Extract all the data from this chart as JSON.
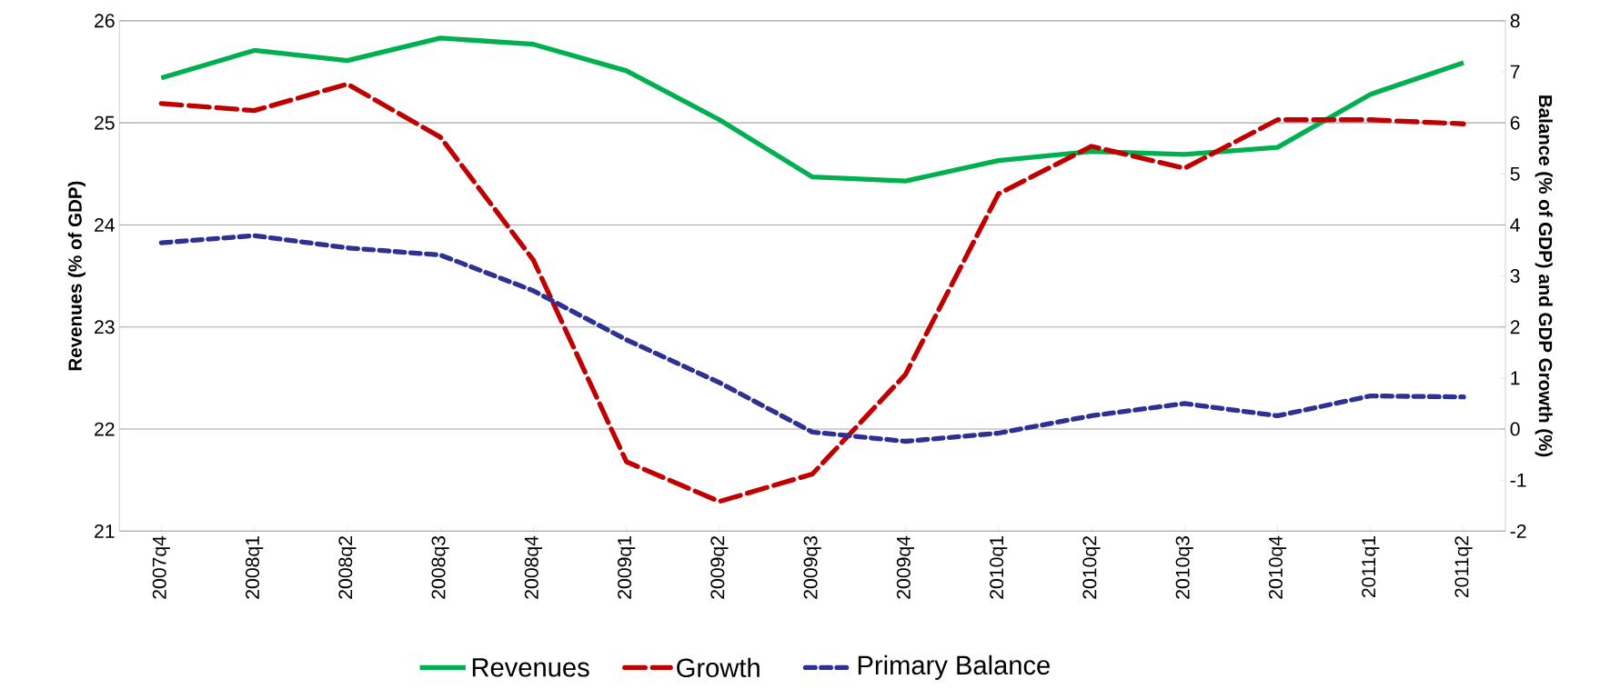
{
  "chart_data": {
    "type": "line",
    "categories": [
      "2007q4",
      "2008q1",
      "2008q2",
      "2008q3",
      "2008q4",
      "2009q1",
      "2009q2",
      "2009q3",
      "2009q4",
      "2010q1",
      "2010q2",
      "2010q3",
      "2010q4",
      "2011q1",
      "2011q2"
    ],
    "series": [
      {
        "name": "Revenues",
        "color": "#00b050",
        "line_style": "solid",
        "values": [
          25.44,
          25.71,
          25.61,
          25.83,
          25.77,
          25.51,
          25.03,
          24.47,
          24.43,
          24.63,
          24.72,
          24.69,
          24.76,
          25.28,
          25.59
        ]
      },
      {
        "name": "Growth",
        "color": "#c00000",
        "line_style": "dashed",
        "axis": "y2",
        "values": [
          6.38,
          6.24,
          6.76,
          5.72,
          3.31,
          -0.64,
          -1.42,
          -0.88,
          1.07,
          4.61,
          5.54,
          5.11,
          6.06,
          6.06,
          5.98
        ]
      },
      {
        "name": "Primary Balance",
        "color": "#2e3192",
        "line_style": "dashed",
        "axis": "y2",
        "values": [
          3.65,
          3.79,
          3.55,
          3.41,
          2.71,
          1.75,
          0.91,
          -0.06,
          -0.24,
          -0.08,
          0.26,
          0.5,
          0.26,
          0.65,
          0.63
        ]
      }
    ],
    "ylabel": "Revenues  (% of GDP)",
    "y2label": "Balance (% of GDP) and GDP Growth (%)",
    "ylim": [
      21,
      26
    ],
    "yticks": [
      21,
      22,
      23,
      24,
      25,
      26
    ],
    "y2lim": [
      -2,
      8
    ],
    "y2ticks": [
      -2,
      -1,
      0,
      1,
      2,
      3,
      4,
      5,
      6,
      7,
      8
    ],
    "grid": "y",
    "legend": "bottom",
    "marker": "none"
  }
}
